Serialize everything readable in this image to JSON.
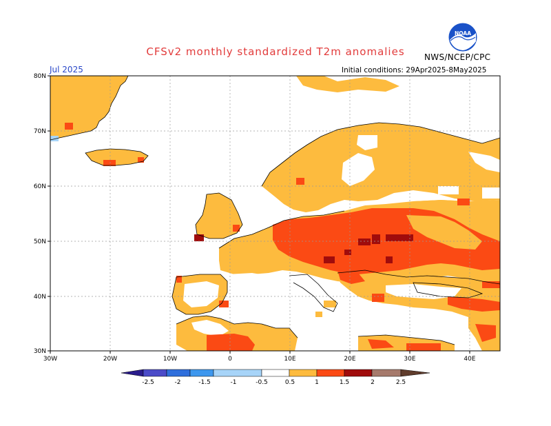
{
  "header": {
    "title": "CFSv2 monthly standardized T2m anomalies",
    "month": "Jul 2025",
    "initial_conditions": "Initial conditions: 29Apr2025-8May2025",
    "organization": "NWS/NCEP/CPC",
    "logo_text": "NOAA"
  },
  "map": {
    "lat_labels": [
      "80N",
      "70N",
      "60N",
      "50N",
      "40N",
      "30N"
    ],
    "lon_labels": [
      "30W",
      "20W",
      "10W",
      "0",
      "10E",
      "20E",
      "30E",
      "40E"
    ],
    "lat_range": [
      30,
      80
    ],
    "lon_range": [
      -30,
      45
    ],
    "colors": {
      "land_line": "#000000",
      "grid": "#9a9a9a"
    }
  },
  "colorbar": {
    "labels": [
      "-2.5",
      "-2",
      "-1.5",
      "-1",
      "-0.5",
      "0.5",
      "1",
      "1.5",
      "2",
      "2.5"
    ],
    "colors": [
      "#2a1c8c",
      "#4b4bc8",
      "#2f6fdc",
      "#3d97ee",
      "#a7d4f8",
      "#ffffff",
      "#fdbb3e",
      "#fb4a14",
      "#a00c0c",
      "#a67a6c",
      "#603c2c"
    ]
  }
}
